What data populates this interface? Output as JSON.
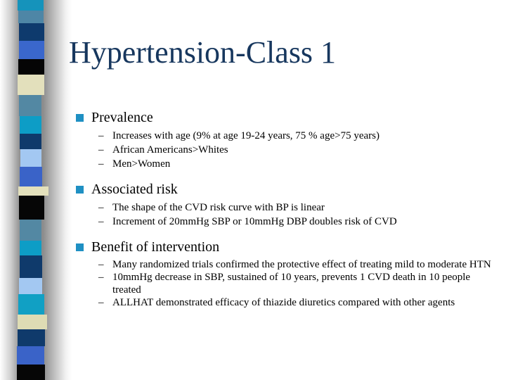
{
  "slide": {
    "title": "Hypertension-Class 1",
    "bullet_char": "–",
    "sections": [
      {
        "heading": "Prevalence",
        "items": [
          "Increases with age (9% at age 19-24 years, 75 % age>75 years)",
          "African Americans>Whites",
          "Men>Women"
        ]
      },
      {
        "heading": "Associated risk",
        "items": [
          "The shape of the CVD risk curve with BP is linear",
          "Increment of 20mmHg SBP or 10mmHg DBP doubles risk of CVD"
        ]
      },
      {
        "heading": "Benefit of intervention",
        "items": [
          "Many randomized trials confirmed the protective effect of treating mild to moderate HTN",
          "10mmHg decrease in SBP, sustained of 10 years, prevents 1 CVD death in 10 people treated",
          "ALLHAT demonstrated efficacy of thiazide diuretics compared with other agents"
        ]
      }
    ]
  },
  "colors": {
    "title_text": "#17375e",
    "body_text": "#000000",
    "bullet_square": "#1f90c3"
  },
  "decor_strip": {
    "segments": [
      {
        "color": "#1593bb",
        "height": 15
      },
      {
        "color": "#4e86a6",
        "height": 18
      },
      {
        "color": "#0e3a6d",
        "height": 25
      },
      {
        "color": "#3a67cc",
        "height": 26
      },
      {
        "color": "#050505",
        "height": 22
      },
      {
        "color": "#e3e0bc",
        "height": 29
      },
      {
        "color": "#5388a3",
        "height": 30
      },
      {
        "color": "#0d9dc6",
        "height": 25
      },
      {
        "color": "#0f3a6b",
        "height": 22
      },
      {
        "color": "#a3c8f2",
        "height": 25
      },
      {
        "color": "#3a63c8",
        "height": 28
      },
      {
        "color": "#e3e0bc",
        "height": 13
      },
      {
        "color": "#060606",
        "height": 34
      },
      {
        "color": "#5388a3",
        "height": 30
      },
      {
        "color": "#0d9dc6",
        "height": 21
      },
      {
        "color": "#0f3a6b",
        "height": 32
      },
      {
        "color": "#a3c8f2",
        "height": 23
      },
      {
        "color": "#11a0c4",
        "height": 29
      },
      {
        "color": "#dedcb4",
        "height": 21
      },
      {
        "color": "#0f3a6b",
        "height": 24
      },
      {
        "color": "#3a63c8",
        "height": 26
      },
      {
        "color": "#060606",
        "height": 22
      }
    ]
  }
}
